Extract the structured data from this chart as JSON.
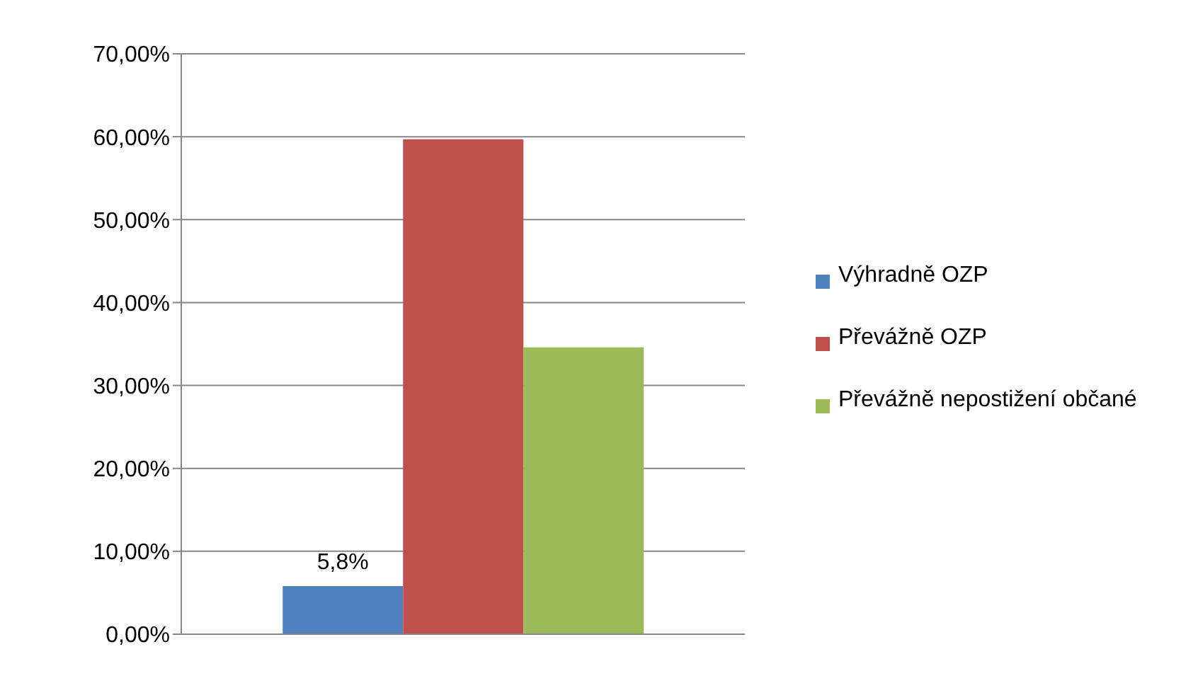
{
  "chart_data": {
    "type": "bar",
    "categories": [
      null
    ],
    "series": [
      {
        "name": "Výhradně OZP",
        "color": "#4f81bd",
        "values": [
          5.8
        ],
        "value_labels": [
          "5,8%"
        ]
      },
      {
        "name": "Převážně OZP",
        "color": "#c0504d",
        "values": [
          59.7
        ]
      },
      {
        "name": "Převážně nepostižení občané",
        "color": "#9bbb59",
        "values": [
          34.6
        ]
      }
    ],
    "ylim": [
      0,
      70
    ],
    "yticks": [
      {
        "value": 0,
        "label": "0,00%"
      },
      {
        "value": 10,
        "label": "10,00%"
      },
      {
        "value": 20,
        "label": "20,00%"
      },
      {
        "value": 30,
        "label": "30,00%"
      },
      {
        "value": 40,
        "label": "40,00%"
      },
      {
        "value": 50,
        "label": "50,00%"
      },
      {
        "value": 60,
        "label": "60,00%"
      },
      {
        "value": 70,
        "label": "70,00%"
      }
    ],
    "grid": "y",
    "legend": "right"
  }
}
